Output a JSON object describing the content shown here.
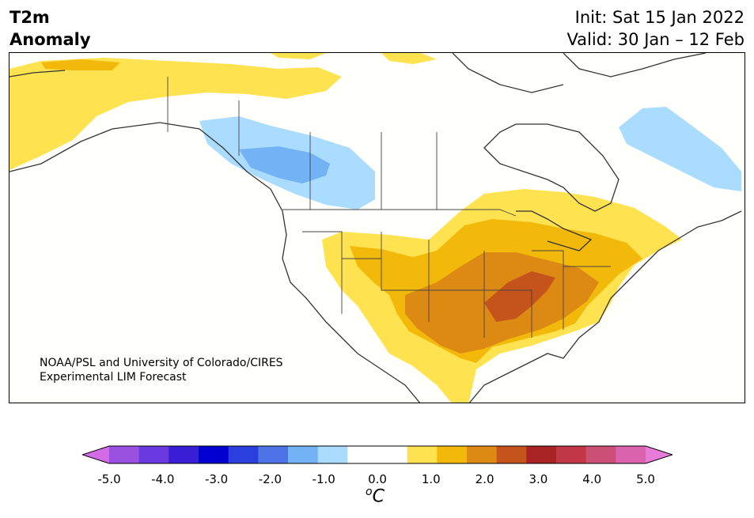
{
  "header": {
    "title_line1": "T2m",
    "title_line2": "Anomaly",
    "init_line": "Init: Sat 15 Jan 2022",
    "valid_line": "Valid: 30 Jan – 12 Feb"
  },
  "map": {
    "region": "North America",
    "credit_line1": "NOAA/PSL and University of Colorado/CIRES",
    "credit_line2": "Experimental LIM Forecast",
    "anomaly_colors": {
      "warm_1": "#ffe24f",
      "warm_2": "#f2b90a",
      "warm_3": "#dd8a14",
      "warm_4": "#c4541b",
      "cool_1": "#a9dcff",
      "cool_2": "#73b2f5",
      "neutral": "#fffffc"
    }
  },
  "colorbar": {
    "unit_base": "C",
    "unit_sup": "o",
    "tick_labels": [
      "-5.0",
      "-4.0",
      "-3.0",
      "-2.0",
      "-1.0",
      "0.0",
      "1.0",
      "2.0",
      "3.0",
      "4.0",
      "5.0"
    ],
    "colors": [
      "#d36ae6",
      "#9b51e0",
      "#6a3ae0",
      "#3a1ed6",
      "#0000d0",
      "#2a3fde",
      "#4d73e6",
      "#73b2f5",
      "#a9dcff",
      "#ffffff",
      "#ffffff",
      "#ffe24f",
      "#f2b90a",
      "#dd8a14",
      "#c4541b",
      "#a82424",
      "#c23748",
      "#cc4f78",
      "#db62ad",
      "#e87bd8"
    ]
  }
}
